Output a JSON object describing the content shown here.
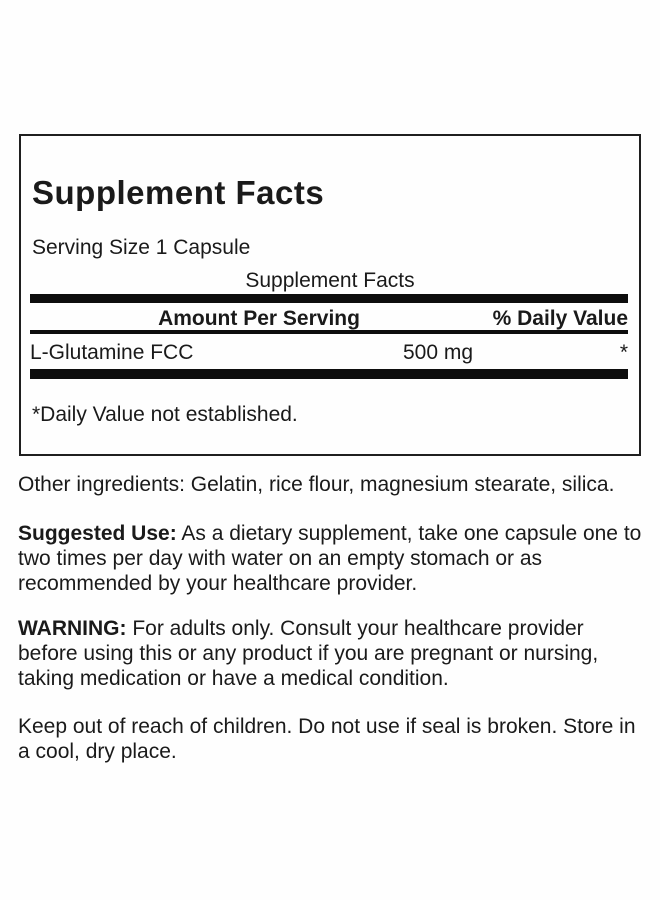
{
  "label": {
    "title": "Supplement Facts",
    "serving_size": "Serving Size 1 Capsule",
    "table_caption": "Supplement Facts",
    "columns": {
      "amount_header": "Amount Per Serving",
      "dv_header": "% Daily Value"
    },
    "rows": [
      {
        "name": "L-Glutamine FCC",
        "amount": "500 mg",
        "dv": "*"
      }
    ],
    "footnote": "*Daily Value not established.",
    "colors": {
      "bar": "#0d0d0d",
      "border": "#1f1f1f",
      "text": "#1a1a1a",
      "background": "#fefefe"
    }
  },
  "paragraphs": {
    "other_ingredients": "Other ingredients: Gelatin, rice flour, magnesium stearate, silica.",
    "suggested_use_label": "Suggested Use:",
    "suggested_use_text": " As a dietary supplement, take one capsule one to two times per day with water on an empty stomach or as recommended by your healthcare provider.",
    "warning_label": "WARNING:",
    "warning_text": " For adults only. Consult your healthcare provider before using this or any product if you are pregnant or nursing, taking medication or have a medical condition.",
    "storage": "Keep out of reach of children. Do not use if seal is broken. Store in a cool, dry place."
  }
}
